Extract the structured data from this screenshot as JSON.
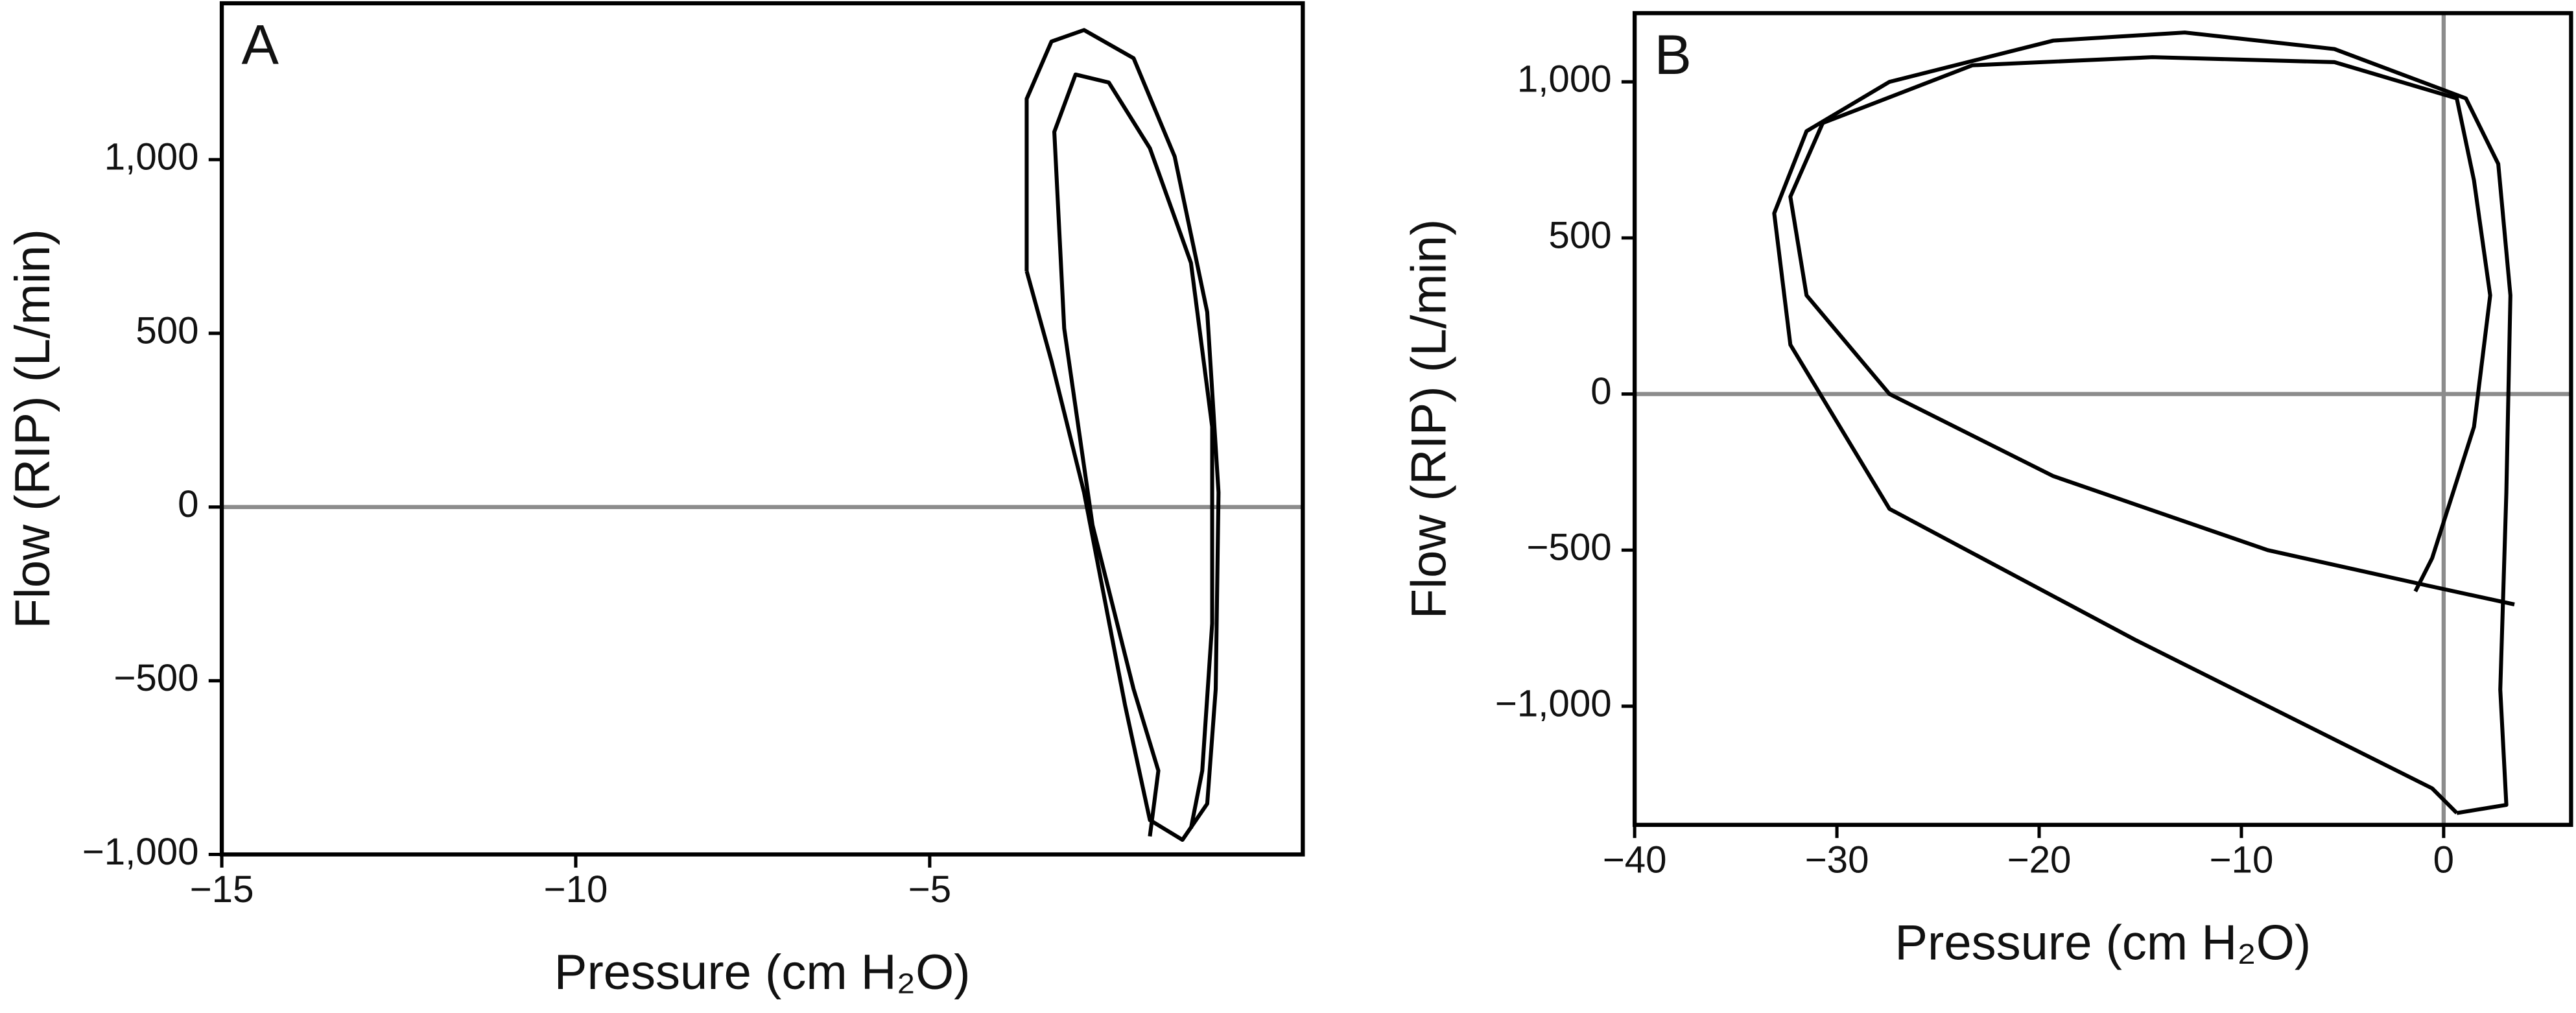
{
  "chart_data": [
    {
      "type": "line",
      "panel_label": "A",
      "x_label": "Pressure (cm H₂O)",
      "y_label": "Flow (RIP) (L/min)",
      "xlim": [
        -15,
        0.27
      ],
      "ylim": [
        -1000,
        1450
      ],
      "xticks": [
        {
          "value": -15,
          "label": "−15"
        },
        {
          "value": -10,
          "label": "−10"
        },
        {
          "value": -5,
          "label": "−5"
        }
      ],
      "yticks": [
        {
          "value": -1000,
          "label": "−1,000"
        },
        {
          "value": -500,
          "label": "−500"
        },
        0,
        500,
        {
          "value": 1000,
          "label": "1,000"
        }
      ],
      "hlines": [
        0
      ],
      "vlines": [],
      "series": [
        {
          "color": "#000000",
          "x": [
            -3.63,
            -3.63,
            -3.28,
            -2.82,
            -2.12,
            -1.54,
            -1.08,
            -0.92,
            -0.96,
            -1.08,
            -1.43,
            -1.89,
            -2.24,
            -2.82,
            -3.28,
            -3.63
          ],
          "values": [
            679,
            1175,
            1340,
            1373,
            1292,
            1009,
            561,
            42,
            -524,
            -854,
            -958,
            -901,
            -571,
            42,
            420,
            679
          ]
        },
        {
          "color": "#000000",
          "x": [
            -1.89,
            -1.77,
            -2.12,
            -2.7,
            -3.1,
            -3.24,
            -2.94,
            -2.47,
            -1.89,
            -1.31,
            -1.01,
            -1.01,
            -1.15,
            -1.31
          ],
          "values": [
            -948,
            -759,
            -524,
            -52,
            514,
            1080,
            1245,
            1222,
            1033,
            703,
            231,
            -335,
            -759,
            -925
          ]
        }
      ]
    },
    {
      "type": "line",
      "panel_label": "B",
      "x_label": "Pressure (cm H₂O)",
      "y_label": "Flow (RIP) (L/min)",
      "xlim": [
        -40,
        6.3
      ],
      "ylim": [
        -1380,
        1220
      ],
      "xticks": [
        {
          "value": -40,
          "label": "−40"
        },
        {
          "value": -30,
          "label": "−30"
        },
        {
          "value": -20,
          "label": "−20"
        },
        {
          "value": -10,
          "label": "−10"
        },
        0
      ],
      "yticks": [
        {
          "value": -1000,
          "label": "−1,000"
        },
        {
          "value": -500,
          "label": "−500"
        },
        0,
        500,
        {
          "value": 1000,
          "label": "1,000"
        }
      ],
      "hlines": [
        0
      ],
      "vlines": [
        0
      ],
      "series": [
        {
          "color": "#000000",
          "x": [
            0.65,
            -0.57,
            -15.2,
            -27.4,
            -32.3,
            -33.1,
            -31.5,
            -27.4,
            -19.3,
            -12.8,
            -5.4,
            1.1,
            2.7,
            3.3,
            3.1,
            2.8,
            3.1,
            0.65
          ],
          "values": [
            -1342,
            -1263,
            -789,
            -368,
            158,
            579,
            842,
            1000,
            1132,
            1158,
            1105,
            947,
            737,
            316,
            -316,
            -947,
            -1316,
            -1342
          ]
        },
        {
          "color": "#000000",
          "x": [
            3.5,
            -1.4,
            -8.7,
            -19.3,
            -27.4,
            -31.5,
            -32.3,
            -30.7,
            -23.3,
            -14.4,
            -5.4,
            0.65,
            1.5,
            2.3,
            1.5,
            -0.57,
            -1.4
          ],
          "values": [
            -674,
            -605,
            -500,
            -263,
            0,
            316,
            632,
            868,
            1053,
            1079,
            1063,
            947,
            684,
            316,
            -105,
            -526,
            -632
          ]
        }
      ]
    }
  ]
}
